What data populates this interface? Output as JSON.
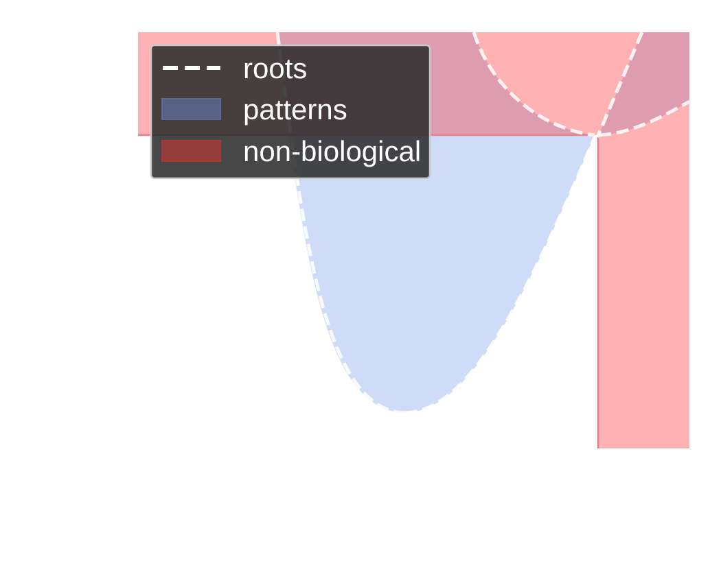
{
  "chart_data": {
    "type": "area",
    "title": "",
    "xlabel": "",
    "ylabel": "",
    "grid": false,
    "axes_visible": false,
    "legend": {
      "placement": "top-left",
      "background": "dark",
      "entries": [
        {
          "label": "roots",
          "style": "dashed-line",
          "color": "#ffffff"
        },
        {
          "label": "patterns",
          "style": "filled-patch",
          "color": "#5a6a96"
        },
        {
          "label": "non-biological",
          "style": "filled-patch",
          "color": "#a83838"
        }
      ]
    },
    "colors": {
      "patterns_fill": "#cfdcf8",
      "non_biological_fill": "#ffb2b4",
      "overlap_fill": "#dd9cb0",
      "boundary_line": "#e57f8a",
      "roots_line": "#ffffff"
    }
  }
}
